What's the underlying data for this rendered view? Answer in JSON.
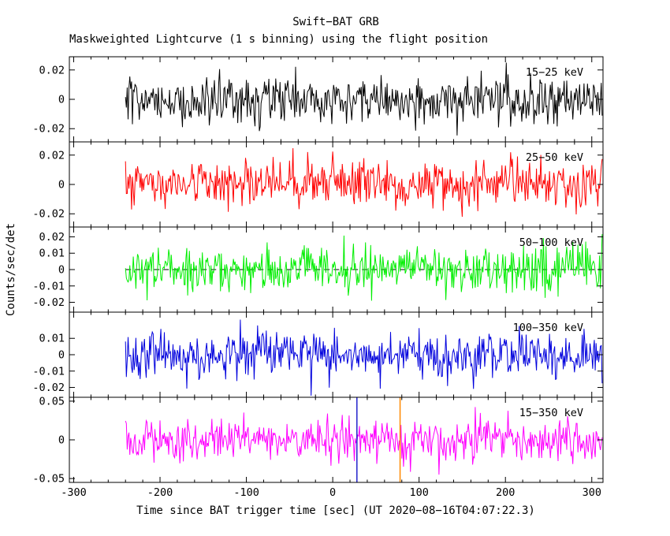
{
  "title": "Swift−BAT GRB",
  "subtitle": "Maskweighted Lightcurve (1 s binning) using the flight position",
  "xlabel": "Time since BAT trigger time [sec] (UT 2020−08−16T04:07:22.3)",
  "ylabel": "Counts/sec/det",
  "chart_data": {
    "type": "line",
    "title": "Swift−BAT GRB",
    "subtitle": "Maskweighted Lightcurve (1 s binning) using the flight position",
    "xlabel": "Time since BAT trigger time [sec] (UT 2020−08−16T04:07:22.3)",
    "ylabel": "Counts/sec/det",
    "xlim": [
      -305,
      313
    ],
    "xticks": [
      "-300",
      "-200",
      "-100",
      "0",
      "100",
      "200",
      "300"
    ],
    "x_minor_step": 20,
    "x_start": -240,
    "x_end": 312,
    "bin_sec": 1,
    "grid": false,
    "legend_position": "inside-top-right-per-panel",
    "panels": [
      {
        "label": "15−25 keV",
        "color": "#000000",
        "ylim": [
          -0.029,
          0.029
        ],
        "yticks": [
          "0.02",
          "0",
          "-0.02"
        ],
        "mean": 0,
        "sigma": 0.008,
        "seed": 101
      },
      {
        "label": "25−50 keV",
        "color": "#ff0000",
        "ylim": [
          -0.029,
          0.029
        ],
        "yticks": [
          "0.02",
          "0",
          "-0.02"
        ],
        "mean": 0,
        "sigma": 0.008,
        "seed": 202,
        "spikes": [
          {
            "t": 0,
            "amp": 0.019,
            "decay_sec": 2
          }
        ]
      },
      {
        "label": "50−100 keV",
        "color": "#00ee00",
        "ylim": [
          -0.026,
          0.026
        ],
        "yticks": [
          "0.02",
          "0.01",
          "0",
          "-0.01",
          "-0.02"
        ],
        "mean": 0,
        "sigma": 0.007,
        "seed": 303,
        "zero_dashed_line": true
      },
      {
        "label": "100−350 keV",
        "color": "#0000dd",
        "ylim": [
          -0.026,
          0.026
        ],
        "yticks": [
          "0.01",
          "0",
          "-0.01",
          "-0.02"
        ],
        "mean": 0,
        "sigma": 0.007,
        "seed": 404
      },
      {
        "label": "15−350 keV",
        "color": "#ff00ff",
        "ylim": [
          -0.055,
          0.055
        ],
        "yticks": [
          "0.05",
          "0",
          "-0.05"
        ],
        "mean": 0,
        "sigma": 0.014,
        "seed": 505,
        "vlines": [
          {
            "t": 28,
            "color": "#2222cc"
          },
          {
            "t": 78,
            "color": "#ff8800"
          }
        ]
      }
    ]
  }
}
